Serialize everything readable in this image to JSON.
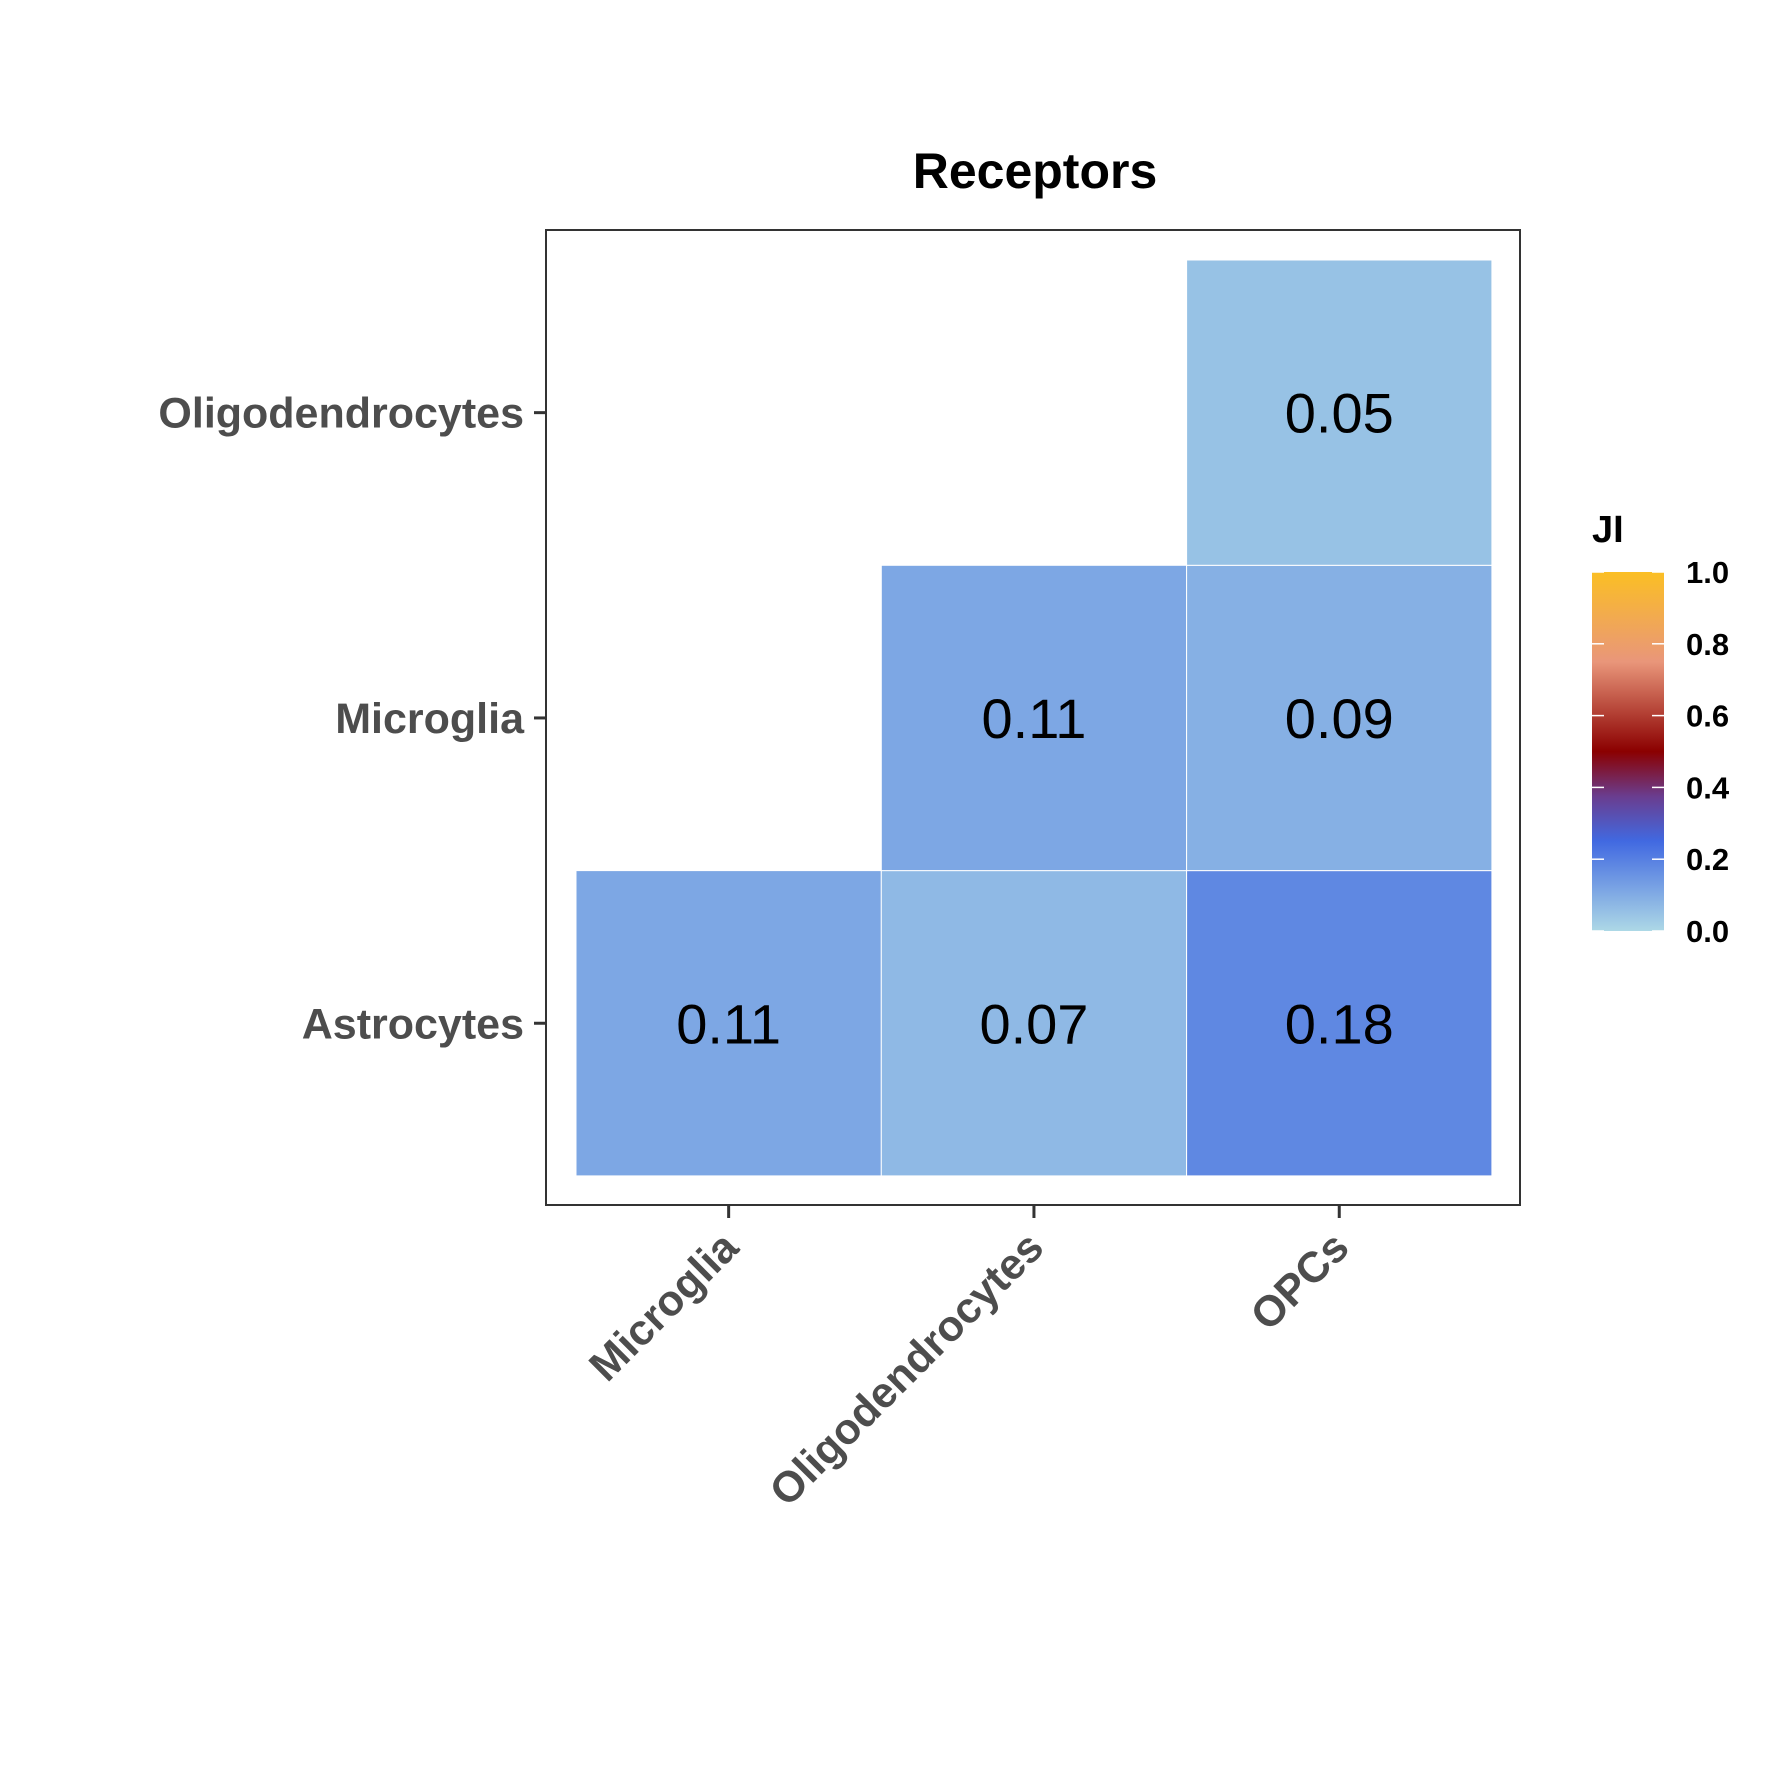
{
  "chart_data": {
    "type": "heatmap",
    "title": "Receptors",
    "x_categories": [
      "Microglia",
      "Oligodendrocytes",
      "OPCs"
    ],
    "y_categories": [
      "Astrocytes",
      "Microglia",
      "Oligodendrocytes"
    ],
    "cells": [
      {
        "x": "Microglia",
        "y": "Astrocytes",
        "value": 0.11,
        "label": "0.11"
      },
      {
        "x": "Oligodendrocytes",
        "y": "Astrocytes",
        "value": 0.07,
        "label": "0.07"
      },
      {
        "x": "OPCs",
        "y": "Astrocytes",
        "value": 0.18,
        "label": "0.18"
      },
      {
        "x": "Oligodendrocytes",
        "y": "Microglia",
        "value": 0.11,
        "label": "0.11"
      },
      {
        "x": "OPCs",
        "y": "Microglia",
        "value": 0.09,
        "label": "0.09"
      },
      {
        "x": "OPCs",
        "y": "Oligodendrocytes",
        "value": 0.05,
        "label": "0.05"
      }
    ],
    "legend": {
      "title": "JI",
      "range": [
        0,
        1
      ],
      "ticks": [
        "0.0",
        "0.2",
        "0.4",
        "0.6",
        "0.8",
        "1.0"
      ],
      "placement": "right",
      "gradient": [
        {
          "value": 0.0,
          "color": "#add8e6"
        },
        {
          "value": 0.25,
          "color": "#4169e1"
        },
        {
          "value": 0.375,
          "color": "#6a3d8f"
        },
        {
          "value": 0.5,
          "color": "#8b0000"
        },
        {
          "value": 0.75,
          "color": "#e9967a"
        },
        {
          "value": 1.0,
          "color": "#fbbf24"
        }
      ]
    },
    "grid": false
  }
}
